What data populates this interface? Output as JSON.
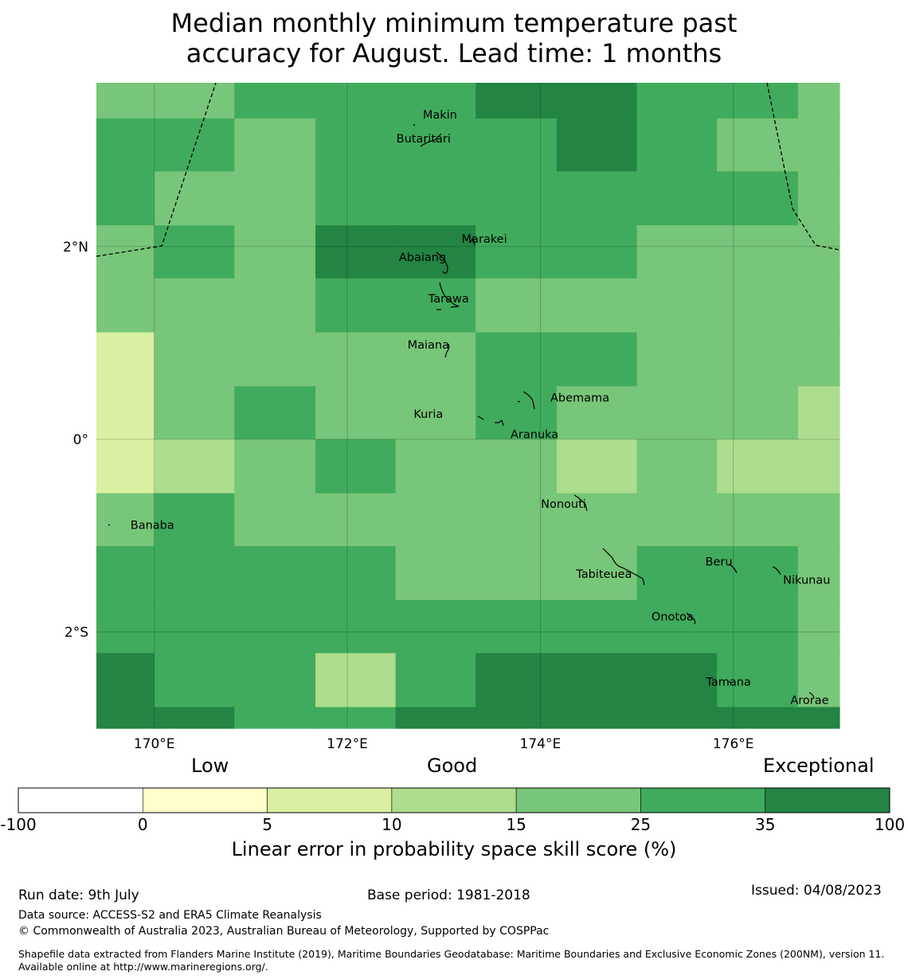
{
  "title": {
    "line1": "Median monthly minimum temperature past",
    "line2": "accuracy for August. Lead time: 1 months"
  },
  "map": {
    "lon_range": [
      169.4,
      177.1
    ],
    "lat_range": [
      -3.0,
      3.7
    ],
    "lon_ticks": [
      {
        "value": 170,
        "label": "170°E"
      },
      {
        "value": 172,
        "label": "172°E"
      },
      {
        "value": 174,
        "label": "174°E"
      },
      {
        "value": 176,
        "label": "176°E"
      }
    ],
    "lat_ticks": [
      {
        "value": 2,
        "label": "2°N"
      },
      {
        "value": 0,
        "label": "0°"
      },
      {
        "value": -2,
        "label": "2°S"
      }
    ],
    "grid_lines": true,
    "lon_edges": [
      169.4,
      170.0,
      170.83,
      171.67,
      172.5,
      173.33,
      174.17,
      175.0,
      175.83,
      176.67,
      177.1
    ],
    "lat_edges": [
      3.7,
      3.33,
      2.78,
      2.22,
      1.67,
      1.11,
      0.55,
      0.0,
      -0.56,
      -1.11,
      -1.67,
      -2.22,
      -2.78,
      -3.0
    ],
    "cell_classes": [
      [
        4,
        4,
        5,
        5,
        5,
        6,
        6,
        5,
        5,
        4
      ],
      [
        5,
        5,
        4,
        5,
        5,
        5,
        6,
        5,
        4,
        4
      ],
      [
        5,
        4,
        4,
        5,
        5,
        5,
        5,
        5,
        5,
        4
      ],
      [
        4,
        5,
        4,
        6,
        6,
        5,
        5,
        4,
        4,
        4
      ],
      [
        4,
        4,
        4,
        5,
        5,
        4,
        4,
        4,
        4,
        4
      ],
      [
        2,
        4,
        4,
        4,
        4,
        5,
        5,
        4,
        4,
        4
      ],
      [
        2,
        4,
        5,
        4,
        4,
        5,
        4,
        4,
        4,
        3
      ],
      [
        2,
        3,
        4,
        5,
        4,
        4,
        3,
        4,
        3,
        3
      ],
      [
        4,
        5,
        4,
        4,
        4,
        4,
        4,
        4,
        4,
        4
      ],
      [
        5,
        5,
        5,
        5,
        4,
        4,
        4,
        5,
        5,
        4
      ],
      [
        5,
        5,
        5,
        5,
        5,
        5,
        5,
        5,
        5,
        4
      ],
      [
        6,
        5,
        5,
        3,
        5,
        6,
        6,
        6,
        5,
        4
      ],
      [
        6,
        6,
        5,
        5,
        6,
        6,
        6,
        6,
        6,
        6
      ]
    ],
    "places": [
      {
        "name": "Makin",
        "lon": 172.96,
        "lat": 3.33
      },
      {
        "name": "Butaritari",
        "lon": 172.79,
        "lat": 3.08
      },
      {
        "name": "Marakei",
        "lon": 173.42,
        "lat": 2.04
      },
      {
        "name": "Abaiang",
        "lon": 172.78,
        "lat": 1.85
      },
      {
        "name": "Tarawa",
        "lon": 173.05,
        "lat": 1.42
      },
      {
        "name": "Maiana",
        "lon": 172.84,
        "lat": 0.94
      },
      {
        "name": "Abemama",
        "lon": 174.41,
        "lat": 0.39
      },
      {
        "name": "Kuria",
        "lon": 172.84,
        "lat": 0.22
      },
      {
        "name": "Aranuka",
        "lon": 173.94,
        "lat": 0.01
      },
      {
        "name": "Nonouti",
        "lon": 174.24,
        "lat": -0.71
      },
      {
        "name": "Banaba",
        "lon": 169.98,
        "lat": -0.93
      },
      {
        "name": "Beru",
        "lon": 175.85,
        "lat": -1.31
      },
      {
        "name": "Tabiteuea",
        "lon": 174.66,
        "lat": -1.44
      },
      {
        "name": "Nikunau",
        "lon": 176.76,
        "lat": -1.5
      },
      {
        "name": "Onotoa",
        "lon": 175.37,
        "lat": -1.88
      },
      {
        "name": "Tamana",
        "lon": 175.95,
        "lat": -2.56
      },
      {
        "name": "Arorae",
        "lon": 176.79,
        "lat": -2.75
      }
    ]
  },
  "colorbar": {
    "category_labels": {
      "low": "Low",
      "good": "Good",
      "exceptional": "Exceptional"
    },
    "bounds": [
      "-100",
      "0",
      "5",
      "10",
      "15",
      "25",
      "35",
      "100"
    ],
    "colors": [
      "#ffffff",
      "#ffffcc",
      "#d9f0a3",
      "#addd8e",
      "#78c679",
      "#41ab5d",
      "#238443"
    ],
    "label": "Linear error in probability space skill score (%)"
  },
  "footer": {
    "run_date": "Run date: 9th July",
    "base_period": "Base period: 1981-2018",
    "issued": "Issued: 04/08/2023",
    "data_source": "Data source: ACCESS-S2 and ERA5 Climate Reanalysis",
    "copyright": "© Commonwealth of Australia 2023, Australian Bureau of Meteorology, Supported by COSPPac",
    "shapefile": "Shapefile data extracted from Flanders Marine Institute (2019), Maritime Boundaries Geodatabase: Maritime Boundaries and Exclusive Economic Zones (200NM), version 11. Available online at http://www.marineregions.org/."
  }
}
